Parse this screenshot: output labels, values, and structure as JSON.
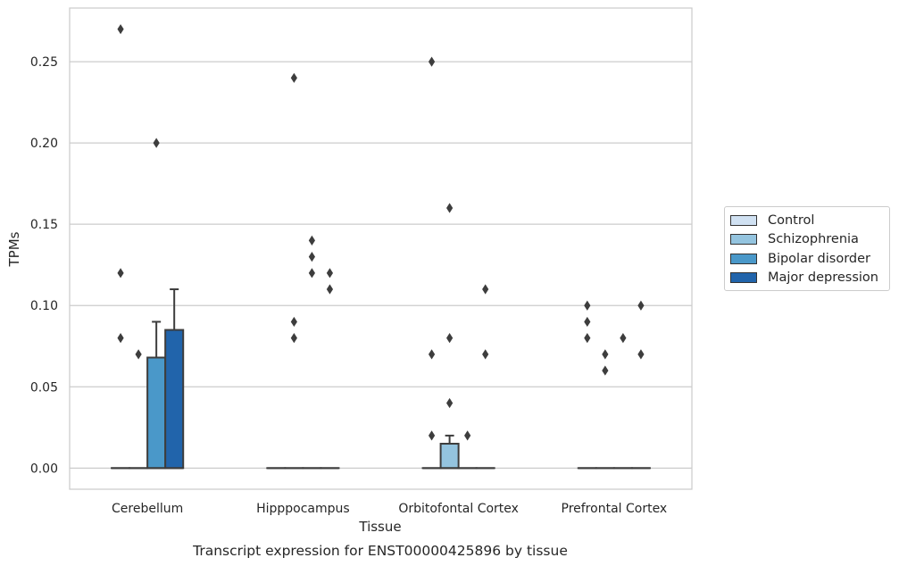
{
  "chart_data": {
    "type": "box",
    "caption": "Transcript expression for ENST00000425896 by tissue",
    "xlabel": "Tissue",
    "ylabel": "TPMs",
    "ylim": [
      -0.013,
      0.283
    ],
    "yticks": [
      0.0,
      0.05,
      0.1,
      0.15,
      0.2,
      0.25
    ],
    "ytick_labels": [
      "0.00",
      "0.05",
      "0.10",
      "0.15",
      "0.20",
      "0.25"
    ],
    "grid": true,
    "legend_position": "right",
    "categories": [
      "Cerebellum",
      "Hipppocampus",
      "Orbitofontal Cortex",
      "Prefrontal Cortex"
    ],
    "series": [
      {
        "name": "Control",
        "color": "#d0e1f2",
        "boxes": [
          {
            "q1": 0,
            "median": 0,
            "q3": 0,
            "whisker_low": 0,
            "whisker_high": 0,
            "outliers": [
              0.08,
              0.12,
              0.27
            ]
          },
          {
            "q1": 0,
            "median": 0,
            "q3": 0,
            "whisker_low": 0,
            "whisker_high": 0,
            "outliers": []
          },
          {
            "q1": 0,
            "median": 0,
            "q3": 0,
            "whisker_low": 0,
            "whisker_high": 0,
            "outliers": [
              0.25,
              0.07,
              0.02
            ]
          },
          {
            "q1": 0,
            "median": 0,
            "q3": 0,
            "whisker_low": 0,
            "whisker_high": 0,
            "outliers": [
              0.1,
              0.09,
              0.08
            ]
          }
        ]
      },
      {
        "name": "Schizophrenia",
        "color": "#94c4df",
        "boxes": [
          {
            "q1": 0,
            "median": 0,
            "q3": 0,
            "whisker_low": 0,
            "whisker_high": 0,
            "outliers": [
              0.07
            ]
          },
          {
            "q1": 0,
            "median": 0,
            "q3": 0,
            "whisker_low": 0,
            "whisker_high": 0,
            "outliers": [
              0.24,
              0.09,
              0.08
            ]
          },
          {
            "q1": 0,
            "median": 0,
            "q3": 0.015,
            "whisker_low": 0,
            "whisker_high": 0.02,
            "outliers": [
              0.16,
              0.08,
              0.04
            ]
          },
          {
            "q1": 0,
            "median": 0,
            "q3": 0,
            "whisker_low": 0,
            "whisker_high": 0,
            "outliers": [
              0.07,
              0.06
            ]
          }
        ]
      },
      {
        "name": "Bipolar disorder",
        "color": "#4a98c9",
        "boxes": [
          {
            "q1": 0,
            "median": 0,
            "q3": 0.068,
            "whisker_low": 0,
            "whisker_high": 0.09,
            "outliers": [
              0.2
            ]
          },
          {
            "q1": 0,
            "median": 0,
            "q3": 0,
            "whisker_low": 0,
            "whisker_high": 0,
            "outliers": [
              0.14,
              0.12,
              0.13
            ]
          },
          {
            "q1": 0,
            "median": 0,
            "q3": 0,
            "whisker_low": 0,
            "whisker_high": 0,
            "outliers": [
              0.02
            ]
          },
          {
            "q1": 0,
            "median": 0,
            "q3": 0,
            "whisker_low": 0,
            "whisker_high": 0,
            "outliers": [
              0.08
            ]
          }
        ]
      },
      {
        "name": "Major depression",
        "color": "#2164ab",
        "boxes": [
          {
            "q1": 0,
            "median": 0,
            "q3": 0.085,
            "whisker_low": 0,
            "whisker_high": 0.11,
            "outliers": []
          },
          {
            "q1": 0,
            "median": 0,
            "q3": 0,
            "whisker_low": 0,
            "whisker_high": 0,
            "outliers": [
              0.12,
              0.11
            ]
          },
          {
            "q1": 0,
            "median": 0,
            "q3": 0,
            "whisker_low": 0,
            "whisker_high": 0,
            "outliers": [
              0.11,
              0.07
            ]
          },
          {
            "q1": 0,
            "median": 0,
            "q3": 0,
            "whisker_low": 0,
            "whisker_high": 0,
            "outliers": [
              0.1,
              0.07
            ]
          }
        ]
      }
    ]
  }
}
